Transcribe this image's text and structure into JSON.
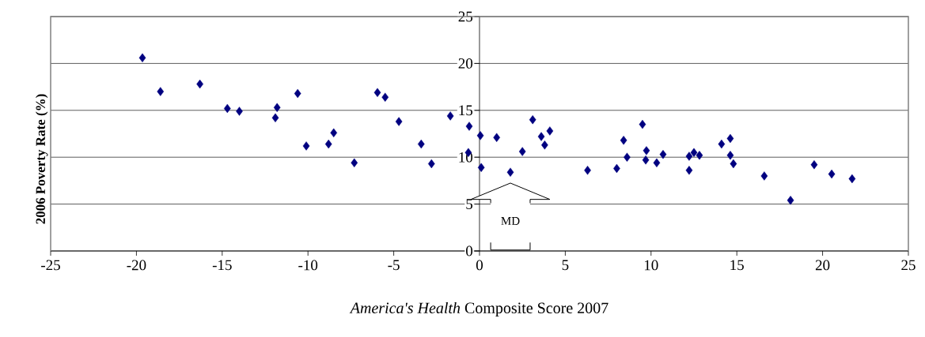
{
  "chart_data": {
    "type": "scatter",
    "xlabel": "*America's Health* Composite Score 2007",
    "ylabel": "2006 Poverty Rate (%)",
    "x": [
      -19.65,
      -18.6,
      -16.3,
      -14.7,
      -14.0,
      -11.8,
      -11.9,
      -10.6,
      -10.1,
      -8.8,
      -8.5,
      -7.3,
      -5.95,
      -5.5,
      -4.7,
      -3.4,
      -2.8,
      -1.7,
      -0.6,
      -0.65,
      0.05,
      0.1,
      1.0,
      1.8,
      2.5,
      3.1,
      3.6,
      3.8,
      4.1,
      6.3,
      8.0,
      8.4,
      8.6,
      9.5,
      9.73,
      9.69,
      10.33,
      10.7,
      12.22,
      12.22,
      12.5,
      12.82,
      14.11,
      14.62,
      14.62,
      14.8,
      16.6,
      18.13,
      19.51,
      20.53,
      21.72
    ],
    "values": [
      20.6,
      17.0,
      17.8,
      15.2,
      14.9,
      15.3,
      14.2,
      16.8,
      11.2,
      11.4,
      12.6,
      9.4,
      16.9,
      16.4,
      13.8,
      11.4,
      9.3,
      14.4,
      13.3,
      10.5,
      12.3,
      8.9,
      12.1,
      8.4,
      10.6,
      14.0,
      12.2,
      11.3,
      12.8,
      8.6,
      8.8,
      11.8,
      10.0,
      13.5,
      10.7,
      9.7,
      9.4,
      10.3,
      8.6,
      10.1,
      10.5,
      10.2,
      11.4,
      12.0,
      10.2,
      9.3,
      8.0,
      5.4,
      9.2,
      8.2,
      7.7
    ],
    "color": "#000080",
    "marker": "diamond",
    "xlim": [
      -25,
      25
    ],
    "xticks": [
      -25,
      -20,
      -15,
      -10,
      -5,
      0,
      5,
      10,
      15,
      20,
      25
    ],
    "ylim": [
      0,
      25
    ],
    "yticks": [
      0,
      5,
      10,
      15,
      20,
      25
    ],
    "grid": "y",
    "annotations": [
      "MD"
    ]
  }
}
